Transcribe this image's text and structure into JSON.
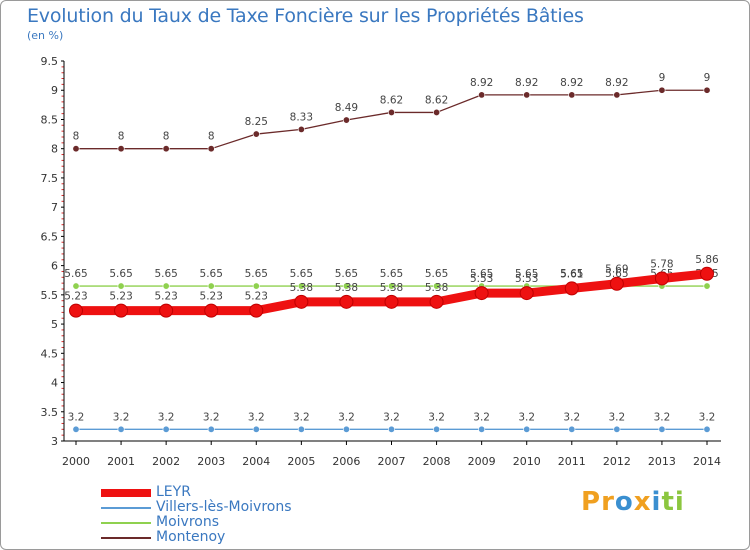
{
  "chart_data": {
    "type": "line",
    "title": "Evolution du Taux de Taxe Foncière sur les Propriétés Bâties",
    "ylabel": "(en %)",
    "xlabel": "",
    "categories": [
      "2000",
      "2001",
      "2002",
      "2003",
      "2004",
      "2005",
      "2006",
      "2007",
      "2008",
      "2009",
      "2010",
      "2011",
      "2012",
      "2013",
      "2014"
    ],
    "ylim": [
      3,
      9.5
    ],
    "yticks": [
      "3",
      "3.5",
      "4",
      "4.5",
      "5",
      "5.5",
      "6",
      "6.5",
      "7",
      "7.5",
      "8",
      "8.5",
      "9",
      "9.5"
    ],
    "grid": false,
    "legend_position": "bottom-left",
    "series": [
      {
        "name": "Montenoy",
        "color": "#6b2a2a",
        "values": [
          8,
          8,
          8,
          8,
          8.25,
          8.33,
          8.49,
          8.62,
          8.62,
          8.92,
          8.92,
          8.92,
          8.92,
          9,
          9
        ],
        "labels": [
          "8",
          "8",
          "8",
          "8",
          "8.25",
          "8.33",
          "8.49",
          "8.62",
          "8.62",
          "8.92",
          "8.92",
          "8.92",
          "8.92",
          "9",
          "9"
        ]
      },
      {
        "name": "Moivrons",
        "color": "#8fd14f",
        "values": [
          5.65,
          5.65,
          5.65,
          5.65,
          5.65,
          5.65,
          5.65,
          5.65,
          5.65,
          5.65,
          5.65,
          5.65,
          5.65,
          5.65,
          5.65
        ],
        "labels": [
          "5.65",
          "5.65",
          "5.65",
          "5.65",
          "5.65",
          "5.65",
          "5.65",
          "5.65",
          "5.65",
          "5.65",
          "5.65",
          "5.65",
          "5.65",
          "5.65",
          "5.65"
        ]
      },
      {
        "name": "Villers-lès-Moivrons",
        "color": "#5b9bd5",
        "values": [
          3.2,
          3.2,
          3.2,
          3.2,
          3.2,
          3.2,
          3.2,
          3.2,
          3.2,
          3.2,
          3.2,
          3.2,
          3.2,
          3.2,
          3.2
        ],
        "labels": [
          "3.2",
          "3.2",
          "3.2",
          "3.2",
          "3.2",
          "3.2",
          "3.2",
          "3.2",
          "3.2",
          "3.2",
          "3.2",
          "3.2",
          "3.2",
          "3.2",
          "3.2"
        ]
      },
      {
        "name": "LEYR",
        "color": "#ee1111",
        "values": [
          5.23,
          5.23,
          5.23,
          5.23,
          5.23,
          5.38,
          5.38,
          5.38,
          5.38,
          5.53,
          5.53,
          5.61,
          5.69,
          5.78,
          5.86
        ],
        "labels": [
          "5.23",
          "5.23",
          "5.23",
          "5.23",
          "5.23",
          "5.38",
          "5.38",
          "5.38",
          "5.38",
          "5.53",
          "5.53",
          "5.61",
          "5.69",
          "5.78",
          "5.86"
        ]
      }
    ],
    "legend": [
      "LEYR",
      "Villers-lès-Moivrons",
      "Moivrons",
      "Montenoy"
    ]
  },
  "brand": {
    "letters": [
      "P",
      "r",
      "o",
      "x",
      "i",
      "t",
      "i"
    ],
    "colors": [
      "#f0a020",
      "#f0a020",
      "#3a8fd0",
      "#f0a020",
      "#3a8fd0",
      "#8cc63f",
      "#8cc63f"
    ]
  }
}
